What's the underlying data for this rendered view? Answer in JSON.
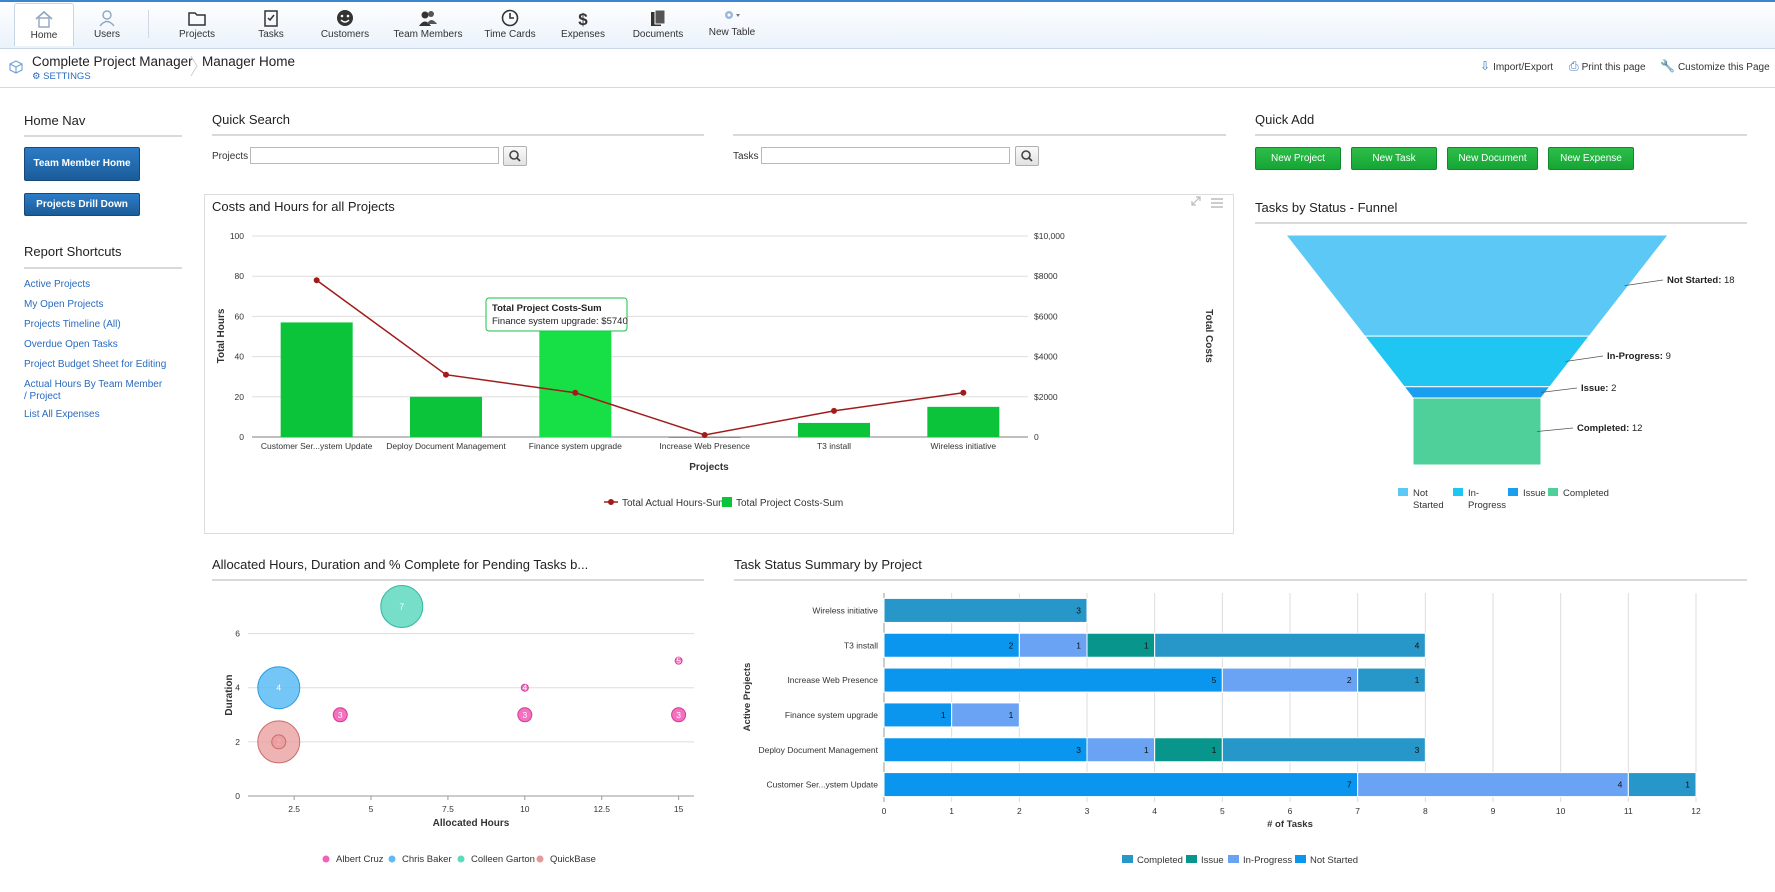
{
  "nav": {
    "items": [
      {
        "label": "Home",
        "icon": "home-icon"
      },
      {
        "label": "Users",
        "icon": "user-icon"
      },
      {
        "label": "Projects",
        "icon": "folder-icon"
      },
      {
        "label": "Tasks",
        "icon": "clipboard-icon"
      },
      {
        "label": "Customers",
        "icon": "smiley-icon"
      },
      {
        "label": "Team Members",
        "icon": "team-icon"
      },
      {
        "label": "Time Cards",
        "icon": "clock-icon"
      },
      {
        "label": "Expenses",
        "icon": "dollar-icon"
      },
      {
        "label": "Documents",
        "icon": "documents-icon"
      },
      {
        "label": "New Table",
        "icon": "gear-dropdown-icon"
      }
    ]
  },
  "breadcrumb": {
    "app": "Complete Project Manager",
    "settings": "SETTINGS",
    "page": "Manager Home"
  },
  "toplinks": {
    "import_export": "Import/Export",
    "print": "Print this page",
    "customize": "Customize this Page"
  },
  "home_nav": {
    "title": "Home Nav",
    "buttons": [
      "Team Member Home",
      "Projects Drill Down"
    ]
  },
  "report_shortcuts": {
    "title": "Report Shortcuts",
    "links": [
      "Active Projects",
      "My Open Projects",
      "Projects Timeline (All)",
      "Overdue Open Tasks",
      "Project Budget Sheet for Editing",
      "Actual Hours By Team Member / Project",
      "List All Expenses"
    ]
  },
  "quick_search": {
    "title": "Quick Search",
    "projects_label": "Projects",
    "tasks_label": "Tasks"
  },
  "quick_add": {
    "title": "Quick Add",
    "buttons": [
      "New Project",
      "New Task",
      "New Document",
      "New Expense"
    ]
  },
  "colors": {
    "green_bar": "#0bc43a",
    "green_bar_hl": "#16e045",
    "line_red": "#a01c1c",
    "accent_blue": "#2a6bbf",
    "funnel_not_started": "#5bc8f5",
    "funnel_in_progress": "#1fc6f2",
    "funnel_issue": "#1a9ef0",
    "funnel_completed": "#4fcf9a",
    "status_completed": "#2796c8",
    "status_issue": "#08958c",
    "status_in_progress": "#6aa3f3",
    "status_not_started": "#0a96ee"
  },
  "charts": {
    "costs": {
      "title": "Costs and Hours for all Projects",
      "xlabel": "Projects",
      "ylabel_left": "Total Hours",
      "ylabel_right": "Total Costs",
      "left_ticks": [
        "0",
        "20",
        "40",
        "60",
        "80",
        "100"
      ],
      "right_ticks": [
        "0",
        "$2000",
        "$4000",
        "$6000",
        "$8000",
        "$10,000"
      ],
      "legend": [
        "Total Actual Hours-Sum",
        "Total Project Costs-Sum"
      ],
      "tooltip_title": "Total Project Costs-Sum",
      "tooltip_body": "Finance system upgrade: $5740"
    },
    "funnel": {
      "title": "Tasks by Status - Funnel",
      "stages": [
        {
          "name": "Not Started",
          "value": "18"
        },
        {
          "name": "In-Progress",
          "value": "9"
        },
        {
          "name": "Issue",
          "value": "2"
        },
        {
          "name": "Completed",
          "value": "12"
        }
      ],
      "legend": [
        "Not Started",
        "In-Progress",
        "Issue",
        "Completed"
      ]
    },
    "bubble": {
      "title": "Allocated Hours, Duration and % Complete for Pending Tasks b...",
      "xlabel": "Allocated Hours",
      "ylabel": "Duration",
      "x_ticks": [
        "2.5",
        "5",
        "7.5",
        "10",
        "12.5",
        "15"
      ],
      "y_ticks": [
        "0",
        "2",
        "4",
        "6"
      ],
      "legend": [
        "Albert Cruz",
        "Chris Baker",
        "Colleen Garton",
        "QuickBase"
      ]
    },
    "status": {
      "title": "Task Status Summary by Project",
      "xlabel": "# of Tasks",
      "ylabel": "Active Projects",
      "legend": [
        "Completed",
        "Issue",
        "In-Progress",
        "Not Started"
      ]
    }
  },
  "chart_data": [
    {
      "type": "bar",
      "title": "Costs and Hours for all Projects",
      "xlabel": "Projects",
      "ylabel": "Total Hours",
      "y2label": "Total Costs",
      "categories": [
        "Customer Ser...ystem Update",
        "Deploy Document Management",
        "Finance system upgrade",
        "Increase Web Presence",
        "T3 install",
        "Wireless initiative"
      ],
      "series": [
        {
          "name": "Total Project Costs-Sum",
          "type": "bar",
          "axis": "right",
          "values": [
            5700,
            2000,
            5740,
            0,
            700,
            1500
          ]
        },
        {
          "name": "Total Actual Hours-Sum",
          "type": "line",
          "axis": "left",
          "values": [
            78,
            31,
            22,
            1,
            13,
            22
          ]
        }
      ],
      "ylim": [
        0,
        100
      ],
      "y2lim": [
        0,
        10000
      ],
      "grid": true,
      "legend_position": "bottom"
    },
    {
      "type": "funnel",
      "title": "Tasks by Status - Funnel",
      "categories": [
        "Not Started",
        "In-Progress",
        "Issue",
        "Completed"
      ],
      "values": [
        18,
        9,
        2,
        12
      ],
      "legend_position": "bottom"
    },
    {
      "type": "scatter",
      "title": "Allocated Hours, Duration and % Complete for Pending Tasks b...",
      "xlabel": "Allocated Hours",
      "ylabel": "Duration",
      "xlim": [
        1,
        15.5
      ],
      "ylim": [
        0,
        7.5
      ],
      "series": [
        {
          "name": "Albert Cruz",
          "points": [
            {
              "x": 4,
              "y": 3,
              "size": 3,
              "label": "3"
            },
            {
              "x": 10,
              "y": 3,
              "size": 3,
              "label": "3"
            },
            {
              "x": 15,
              "y": 3,
              "size": 3,
              "label": "3"
            },
            {
              "x": 10,
              "y": 4,
              "size": 1,
              "label": "4"
            },
            {
              "x": 15,
              "y": 5,
              "size": 1,
              "label": "5"
            }
          ]
        },
        {
          "name": "Chris Baker",
          "points": [
            {
              "x": 2,
              "y": 4,
              "size": 14,
              "label": "4"
            }
          ]
        },
        {
          "name": "Colleen Garton",
          "points": [
            {
              "x": 6,
              "y": 7,
              "size": 14,
              "label": "7"
            }
          ]
        },
        {
          "name": "QuickBase",
          "points": [
            {
              "x": 2,
              "y": 2,
              "size": 14,
              "label": "2"
            },
            {
              "x": 2,
              "y": 2,
              "size": 3,
              "label": ""
            }
          ]
        }
      ],
      "legend_position": "bottom"
    },
    {
      "type": "bar",
      "orientation": "horizontal",
      "stacked": true,
      "title": "Task Status Summary by Project",
      "xlabel": "# of Tasks",
      "ylabel": "Active Projects",
      "categories": [
        "Wireless initiative",
        "T3 install",
        "Increase Web Presence",
        "Finance system upgrade",
        "Deploy Document Management",
        "Customer Ser...ystem Update"
      ],
      "series": [
        {
          "name": "Not Started",
          "values": [
            0,
            2,
            5,
            1,
            3,
            7
          ]
        },
        {
          "name": "In-Progress",
          "values": [
            0,
            1,
            2,
            1,
            1,
            4
          ]
        },
        {
          "name": "Issue",
          "values": [
            0,
            1,
            0,
            0,
            1,
            0
          ]
        },
        {
          "name": "Completed",
          "values": [
            3,
            4,
            1,
            0,
            3,
            1
          ]
        }
      ],
      "xlim": [
        0,
        12
      ],
      "legend_position": "bottom"
    }
  ]
}
